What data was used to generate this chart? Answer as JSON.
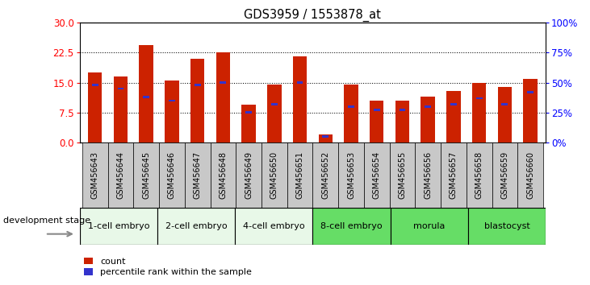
{
  "title": "GDS3959 / 1553878_at",
  "samples": [
    "GSM456643",
    "GSM456644",
    "GSM456645",
    "GSM456646",
    "GSM456647",
    "GSM456648",
    "GSM456649",
    "GSM456650",
    "GSM456651",
    "GSM456652",
    "GSM456653",
    "GSM456654",
    "GSM456655",
    "GSM456656",
    "GSM456657",
    "GSM456658",
    "GSM456659",
    "GSM456660"
  ],
  "count_values": [
    17.5,
    16.5,
    24.5,
    15.5,
    21.0,
    22.5,
    9.5,
    14.5,
    21.5,
    2.0,
    14.5,
    10.5,
    10.5,
    11.5,
    13.0,
    15.0,
    14.0,
    16.0
  ],
  "percentile_values": [
    48.0,
    45.0,
    38.0,
    35.0,
    48.0,
    50.0,
    25.0,
    32.0,
    50.0,
    5.0,
    30.0,
    27.0,
    27.0,
    30.0,
    32.0,
    37.0,
    32.0,
    42.0
  ],
  "stages": [
    {
      "label": "1-cell embryo",
      "start": 0,
      "end": 3
    },
    {
      "label": "2-cell embryo",
      "start": 3,
      "end": 6
    },
    {
      "label": "4-cell embryo",
      "start": 6,
      "end": 9
    },
    {
      "label": "8-cell embryo",
      "start": 9,
      "end": 12
    },
    {
      "label": "morula",
      "start": 12,
      "end": 15
    },
    {
      "label": "blastocyst",
      "start": 15,
      "end": 18
    }
  ],
  "stage_colors_light": "#e8f8e8",
  "stage_colors_dark": "#66dd66",
  "ylim_left": [
    0,
    30
  ],
  "ylim_right": [
    0,
    100
  ],
  "yticks_left": [
    0,
    7.5,
    15,
    22.5,
    30
  ],
  "yticks_right": [
    0,
    25,
    50,
    75,
    100
  ],
  "bar_color": "#cc2200",
  "marker_color": "#3333cc",
  "tick_bg_color": "#c8c8c8",
  "bar_width": 0.55
}
